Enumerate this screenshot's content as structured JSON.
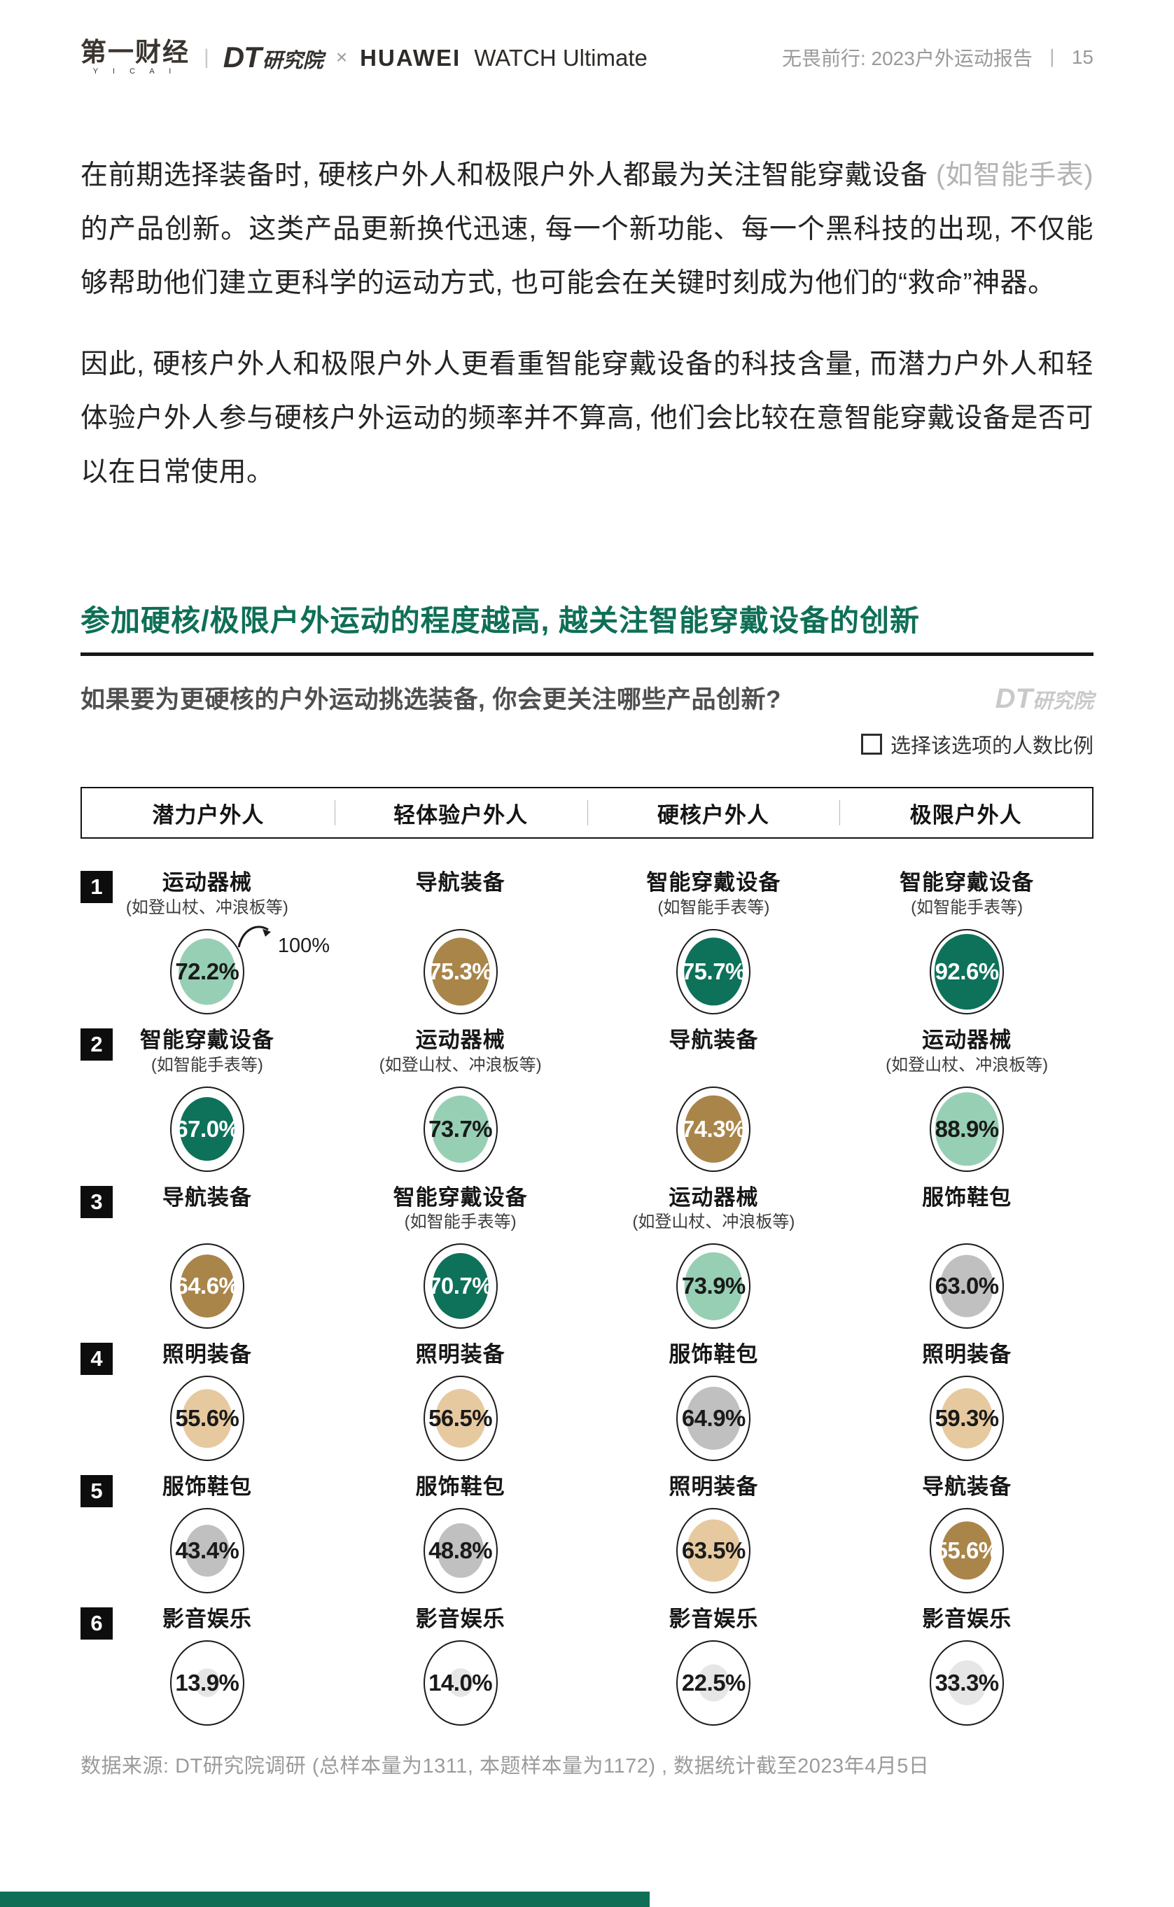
{
  "header": {
    "logo_yicai_cn": "第一财经",
    "logo_yicai_en": "Y I C A I",
    "logo_divider": "|",
    "logo_dt": "DT",
    "logo_dt_suffix": "研究院",
    "logo_cross": "×",
    "logo_huawei": "HUAWEI",
    "logo_watch": "WATCH Ultimate",
    "report_title": "无畏前行: 2023户外运动报告",
    "page_separator": "丨",
    "page_number": "15"
  },
  "paragraphs": [
    {
      "before": "在前期选择装备时, 硬核户外人和极限户外人都最为关注智能穿戴设备 ",
      "muted": "(如智能手表)",
      "after": " 的产品创新。这类产品更新换代迅速, 每一个新功能、每一个黑科技的出现, 不仅能够帮助他们建立更科学的运动方式, 也可能会在关键时刻成为他们的“救命”神器。"
    },
    {
      "text": "因此, 硬核户外人和极限户外人更看重智能穿戴设备的科技含量, 而潜力户外人和轻体验户外人参与硬核户外运动的频率并不算高, 他们会比较在意智能穿戴设备是否可以在日常使用。"
    }
  ],
  "chart": {
    "headline": "参加硬核/极限户外运动的程度越高, 越关注智能穿戴设备的创新",
    "question": "如果要为更硬核的户外运动挑选装备, 你会更关注哪些产品创新?",
    "watermark_dt": "DT",
    "watermark_suffix": "研究院",
    "legend_label": "选择该选项的人数比例",
    "palette": {
      "dark_green": {
        "fill": "#0E7159",
        "text": "#FFFFFF"
      },
      "light_green": {
        "fill": "#97CFB5",
        "text": "#1A1A1A"
      },
      "brown": {
        "fill": "#A9854A",
        "text": "#FFFFFF"
      },
      "tan": {
        "fill": "#E7C9A0",
        "text": "#1A1A1A"
      },
      "gray": {
        "fill": "#C0C0C0",
        "text": "#1A1A1A"
      },
      "light_gray": {
        "fill": "#E6E6E6",
        "text": "#1A1A1A"
      }
    }
  },
  "chart_data": {
    "type": "table",
    "title": "参加硬核/极限户外运动的程度越高, 越关注智能穿戴设备的创新",
    "subtitle": "如果要为更硬核的户外运动挑选装备, 你会更关注哪些产品创新?",
    "unit": "选择该选项的人数比例 (%)",
    "reference_max": 100,
    "columns": [
      "潜力户外人",
      "轻体验户外人",
      "硬核户外人",
      "极限户外人"
    ],
    "rows": [
      {
        "rank": "1",
        "has_sub": true,
        "cells": [
          {
            "category": "运动器械",
            "sub": "(如登山杖、冲浪板等)",
            "value": 72.2,
            "label": "72.2%",
            "color": "light_green",
            "annotation": "100%"
          },
          {
            "category": "导航装备",
            "sub": "",
            "value": 75.3,
            "label": "75.3%",
            "color": "brown"
          },
          {
            "category": "智能穿戴设备",
            "sub": "(如智能手表等)",
            "value": 75.7,
            "label": "75.7%",
            "color": "dark_green"
          },
          {
            "category": "智能穿戴设备",
            "sub": "(如智能手表等)",
            "value": 92.6,
            "label": "92.6%",
            "color": "dark_green"
          }
        ]
      },
      {
        "rank": "2",
        "has_sub": true,
        "cells": [
          {
            "category": "智能穿戴设备",
            "sub": "(如智能手表等)",
            "value": 67.0,
            "label": "67.0%",
            "color": "dark_green"
          },
          {
            "category": "运动器械",
            "sub": "(如登山杖、冲浪板等)",
            "value": 73.7,
            "label": "73.7%",
            "color": "light_green"
          },
          {
            "category": "导航装备",
            "sub": "",
            "value": 74.3,
            "label": "74.3%",
            "color": "brown"
          },
          {
            "category": "运动器械",
            "sub": "(如登山杖、冲浪板等)",
            "value": 88.9,
            "label": "88.9%",
            "color": "light_green"
          }
        ]
      },
      {
        "rank": "3",
        "has_sub": true,
        "cells": [
          {
            "category": "导航装备",
            "sub": "",
            "value": 64.6,
            "label": "64.6%",
            "color": "brown"
          },
          {
            "category": "智能穿戴设备",
            "sub": "(如智能手表等)",
            "value": 70.7,
            "label": "70.7%",
            "color": "dark_green"
          },
          {
            "category": "运动器械",
            "sub": "(如登山杖、冲浪板等)",
            "value": 73.9,
            "label": "73.9%",
            "color": "light_green"
          },
          {
            "category": "服饰鞋包",
            "sub": "",
            "value": 63.0,
            "label": "63.0%",
            "color": "gray"
          }
        ]
      },
      {
        "rank": "4",
        "has_sub": false,
        "cells": [
          {
            "category": "照明装备",
            "sub": "",
            "value": 55.6,
            "label": "55.6%",
            "color": "tan"
          },
          {
            "category": "照明装备",
            "sub": "",
            "value": 56.5,
            "label": "56.5%",
            "color": "tan"
          },
          {
            "category": "服饰鞋包",
            "sub": "",
            "value": 64.9,
            "label": "64.9%",
            "color": "gray"
          },
          {
            "category": "照明装备",
            "sub": "",
            "value": 59.3,
            "label": "59.3%",
            "color": "tan"
          }
        ]
      },
      {
        "rank": "5",
        "has_sub": false,
        "cells": [
          {
            "category": "服饰鞋包",
            "sub": "",
            "value": 43.4,
            "label": "43.4%",
            "color": "gray"
          },
          {
            "category": "服饰鞋包",
            "sub": "",
            "value": 48.8,
            "label": "48.8%",
            "color": "gray"
          },
          {
            "category": "照明装备",
            "sub": "",
            "value": 63.5,
            "label": "63.5%",
            "color": "tan"
          },
          {
            "category": "导航装备",
            "sub": "",
            "value": 55.6,
            "label": "55.6%",
            "color": "brown"
          }
        ]
      },
      {
        "rank": "6",
        "has_sub": false,
        "cells": [
          {
            "category": "影音娱乐",
            "sub": "",
            "value": 13.9,
            "label": "13.9%",
            "color": "light_gray"
          },
          {
            "category": "影音娱乐",
            "sub": "",
            "value": 14.0,
            "label": "14.0%",
            "color": "light_gray"
          },
          {
            "category": "影音娱乐",
            "sub": "",
            "value": 22.5,
            "label": "22.5%",
            "color": "light_gray"
          },
          {
            "category": "影音娱乐",
            "sub": "",
            "value": 33.3,
            "label": "33.3%",
            "color": "light_gray"
          }
        ]
      }
    ]
  },
  "footer": {
    "source": "数据来源: DT研究院调研 (总样本量为1311, 本题样本量为1172) , 数据统计截至2023年4月5日"
  }
}
